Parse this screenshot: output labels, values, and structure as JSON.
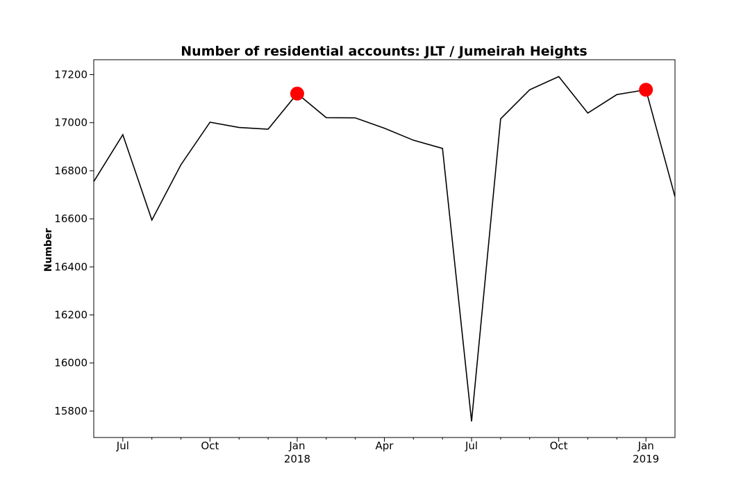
{
  "chart_data": {
    "type": "line",
    "title": "Number of residential accounts: JLT / Jumeirah Heights",
    "xlabel": "",
    "ylabel": "Number",
    "ylim": [
      15690,
      17262
    ],
    "xlim": [
      "2017-06",
      "2019-02"
    ],
    "x": [
      "2017-06",
      "2017-07",
      "2017-08",
      "2017-09",
      "2017-10",
      "2017-11",
      "2017-12",
      "2018-01",
      "2018-02",
      "2018-03",
      "2018-04",
      "2018-05",
      "2018-06",
      "2018-07",
      "2018-08",
      "2018-09",
      "2018-10",
      "2018-11",
      "2018-12",
      "2019-01",
      "2019-02"
    ],
    "series": [
      {
        "values": [
          16755,
          16950,
          16595,
          16825,
          17002,
          16980,
          16973,
          17121,
          17021,
          17020,
          16977,
          16927,
          16893,
          15757,
          17016,
          17137,
          17192,
          17040,
          17117,
          17137,
          16692
        ]
      }
    ],
    "highlight_points": [
      {
        "x": "2018-01",
        "value": 17121
      },
      {
        "x": "2019-01",
        "value": 17137
      }
    ],
    "highlight_color": "#ff0000",
    "line_color": "#000000",
    "y_ticks": [
      15800,
      16000,
      16200,
      16400,
      16600,
      16800,
      17000,
      17200
    ],
    "x_major_ticks": [
      {
        "x": "2017-07",
        "label": "Jul",
        "year": ""
      },
      {
        "x": "2017-10",
        "label": "Oct",
        "year": ""
      },
      {
        "x": "2018-01",
        "label": "Jan",
        "year": "2018"
      },
      {
        "x": "2018-04",
        "label": "Apr",
        "year": ""
      },
      {
        "x": "2018-07",
        "label": "Jul",
        "year": ""
      },
      {
        "x": "2018-10",
        "label": "Oct",
        "year": ""
      },
      {
        "x": "2019-01",
        "label": "Jan",
        "year": "2019"
      }
    ],
    "grid": false,
    "legend": "none"
  }
}
